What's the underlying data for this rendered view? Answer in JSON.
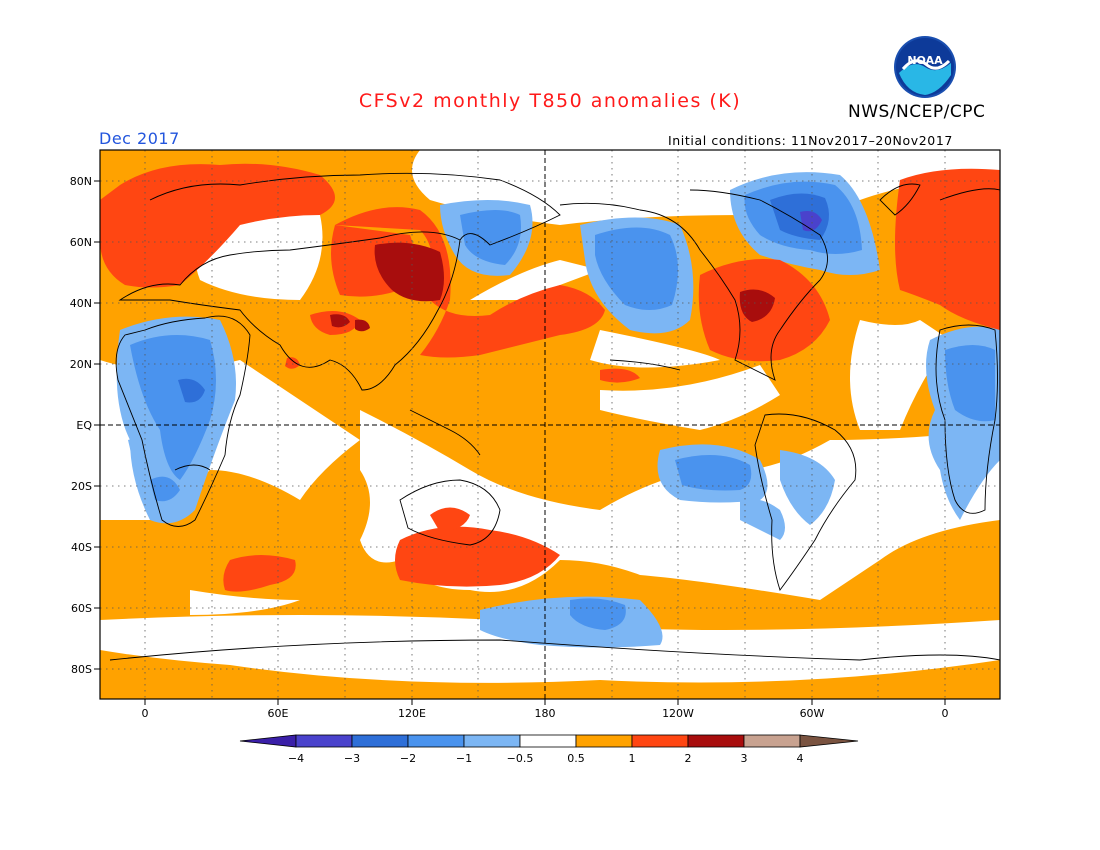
{
  "header": {
    "title": "CFSv2 monthly T850 anomalies (K)",
    "month": "Dec 2017",
    "agency": "NWS/NCEP/CPC",
    "initial_conditions": "Initial conditions: 11Nov2017–20Nov2017",
    "logo_text": "NOAA",
    "logo_icon": "noaa-logo-icon"
  },
  "map": {
    "latitude_labels": [
      "80N",
      "60N",
      "40N",
      "20N",
      "EQ",
      "20S",
      "40S",
      "60S",
      "80S"
    ],
    "longitude_labels": [
      "0",
      "60E",
      "120E",
      "180",
      "120W",
      "60W",
      "0"
    ],
    "gridlines": true
  },
  "colorbar": {
    "labels": [
      "−4",
      "−3",
      "−2",
      "−1",
      "−0.5",
      "0.5",
      "1",
      "2",
      "3",
      "4"
    ],
    "colors": [
      "#3a1fa8",
      "#4a42cc",
      "#2e6fd8",
      "#4a93ee",
      "#7cb6f4",
      "#ffffff",
      "#ffa200",
      "#ff4612",
      "#a80d0d",
      "#c8a290",
      "#7a5340"
    ]
  }
}
